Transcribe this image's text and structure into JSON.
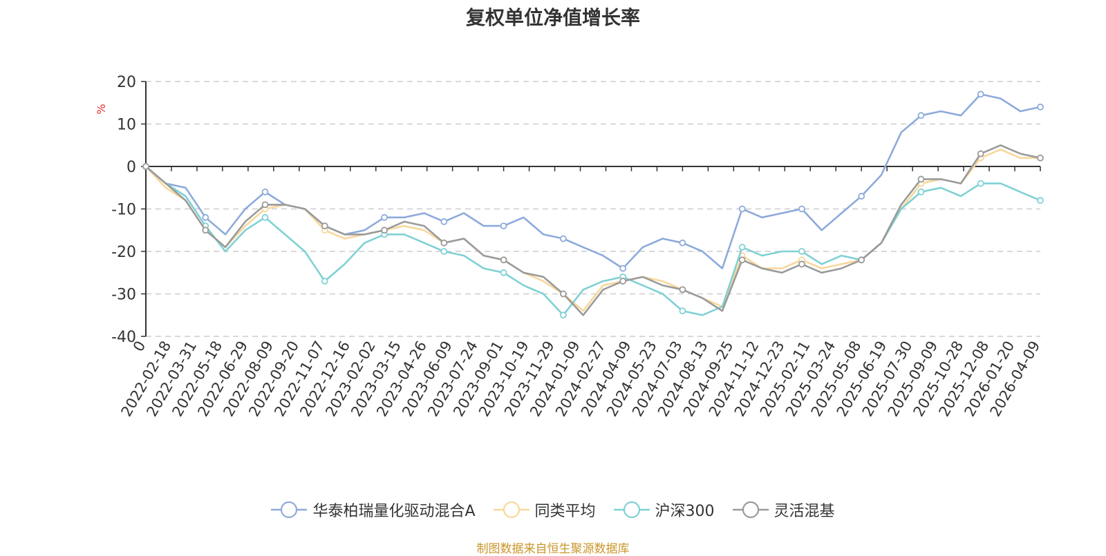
{
  "chart_data": {
    "type": "line",
    "title": "复权单位净值增长率",
    "ylabel": "%",
    "ylim": [
      -40,
      20
    ],
    "yticks": [
      20,
      10,
      0,
      -10,
      -20,
      -30,
      -40
    ],
    "grid": true,
    "legend_position": "bottom",
    "x_tick_labels": [
      "0",
      "2022-02-18",
      "2022-03-31",
      "2022-05-18",
      "2022-06-29",
      "2022-08-09",
      "2022-09-20",
      "2022-11-07",
      "2022-12-16",
      "2023-02-02",
      "2023-03-15",
      "2023-04-26",
      "2023-06-09",
      "2023-07-24",
      "2023-09-01",
      "2023-10-19",
      "2023-11-29",
      "2024-01-09",
      "2024-02-27",
      "2024-04-09",
      "2024-05-23",
      "2024-07-03",
      "2024-08-13",
      "2024-09-25",
      "2024-11-12",
      "2024-12-23",
      "2025-02-11",
      "2025-03-24",
      "2025-05-08",
      "2025-06-19",
      "2025-07-30",
      "2025-09-09",
      "2025-10-28",
      "2025-12-08",
      "2026-01-20",
      "2026-04-09"
    ],
    "series": [
      {
        "name": "华泰柏瑞量化驱动混合A",
        "color": "#8daadb",
        "values": [
          0,
          -4,
          -5,
          -12,
          -16,
          -10,
          -6,
          -9,
          -10,
          -14,
          -16,
          -15,
          -12,
          -12,
          -11,
          -13,
          -11,
          -14,
          -14,
          -12,
          -16,
          -17,
          -19,
          -21,
          -24,
          -19,
          -17,
          -18,
          -20,
          -24,
          -10,
          -12,
          -11,
          -10,
          -15,
          -11,
          -7,
          -2,
          8,
          12,
          13,
          12,
          17,
          16,
          13,
          14
        ]
      },
      {
        "name": "同类平均",
        "color": "#f8d79a",
        "values": [
          0,
          -5,
          -8,
          -15,
          -19,
          -14,
          -10,
          -9,
          -10,
          -15,
          -17,
          -16,
          -15,
          -14,
          -15,
          -18,
          -17,
          -21,
          -22,
          -25,
          -27,
          -30,
          -34,
          -28,
          -27,
          -26,
          -27,
          -29,
          -31,
          -33,
          -21,
          -24,
          -24,
          -22,
          -24,
          -23,
          -22,
          -18,
          -10,
          -4,
          -3,
          -4,
          2,
          4,
          2,
          2
        ]
      },
      {
        "name": "沪深300",
        "color": "#7fd1d4",
        "values": [
          0,
          -4,
          -7,
          -14,
          -20,
          -15,
          -12,
          -16,
          -20,
          -27,
          -23,
          -18,
          -16,
          -16,
          -18,
          -20,
          -21,
          -24,
          -25,
          -28,
          -30,
          -35,
          -29,
          -27,
          -26,
          -28,
          -30,
          -34,
          -35,
          -33,
          -19,
          -21,
          -20,
          -20,
          -23,
          -21,
          -22,
          -18,
          -10,
          -6,
          -5,
          -7,
          -4,
          -4,
          -6,
          -8
        ]
      },
      {
        "name": "灵活混基",
        "color": "#9a9a9a",
        "values": [
          0,
          -4,
          -8,
          -15,
          -19,
          -13,
          -9,
          -9,
          -10,
          -14,
          -16,
          -16,
          -15,
          -13,
          -14,
          -18,
          -17,
          -21,
          -22,
          -25,
          -26,
          -30,
          -35,
          -29,
          -27,
          -26,
          -28,
          -29,
          -31,
          -34,
          -22,
          -24,
          -25,
          -23,
          -25,
          -24,
          -22,
          -18,
          -9,
          -3,
          -3,
          -4,
          3,
          5,
          3,
          2
        ]
      }
    ]
  },
  "source_note": "制图数据来自恒生聚源数据库"
}
